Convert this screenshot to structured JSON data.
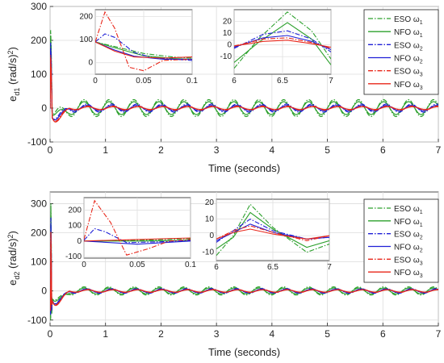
{
  "legend_labels": [
    "ESO ω1",
    "NFO ω1",
    "ESO ω2",
    "NFO ω2",
    "ESO ω3",
    "NFO ω3"
  ],
  "chart_data": [
    {
      "type": "line",
      "xlabel": "Time (seconds)",
      "ylabel": "e_d1 (rad/s^2)",
      "xlim": [
        0,
        7
      ],
      "ylim": [
        -100,
        300
      ],
      "xticks": [
        "0",
        "1",
        "2",
        "3",
        "4",
        "5",
        "6",
        "7"
      ],
      "yticks": [
        "-100",
        "0",
        "100",
        "200",
        "300"
      ],
      "grid": true,
      "legend": "top-right",
      "series": [
        {
          "name": "ESO ω1",
          "color": "#2ca02c",
          "dash": "6,2,1.5,2",
          "period": 0.45,
          "amp": 25,
          "phase": 0.05
        },
        {
          "name": "NFO ω1",
          "color": "#2ca02c",
          "dash": "",
          "period": 0.45,
          "amp": 19,
          "phase": 0.05
        },
        {
          "name": "ESO ω2",
          "color": "#1f1fd6",
          "dash": "6,2,1.5,2",
          "period": 0.45,
          "amp": 12,
          "phase": 0.1
        },
        {
          "name": "NFO ω2",
          "color": "#1f1fd6",
          "dash": "",
          "period": 0.45,
          "amp": 8,
          "phase": 0.1
        },
        {
          "name": "ESO ω3",
          "color": "#e8261a",
          "dash": "6,2,1.5,2",
          "period": 0.45,
          "amp": 6,
          "phase": 0.12
        },
        {
          "name": "NFO ω3",
          "color": "#e8261a",
          "dash": "",
          "period": 0.45,
          "amp": 4,
          "phase": 0.12
        }
      ],
      "insets": [
        {
          "xlim": [
            0,
            0.1
          ],
          "ylim": [
            -50,
            230
          ],
          "xticks": [
            "0",
            "0.05",
            "0.1"
          ],
          "yticks": [
            "0",
            "100",
            "200"
          ],
          "series": [
            {
              "name": "ESO ω1",
              "points": [
                [
                  0,
                  90
                ],
                [
                  0.02,
                  70
                ],
                [
                  0.05,
                  40
                ],
                [
                  0.08,
                  25
                ],
                [
                  0.1,
                  20
                ]
              ]
            },
            {
              "name": "NFO ω1",
              "points": [
                [
                  0,
                  90
                ],
                [
                  0.02,
                  65
                ],
                [
                  0.05,
                  30
                ],
                [
                  0.08,
                  18
                ],
                [
                  0.1,
                  15
                ]
              ]
            },
            {
              "name": "ESO ω2",
              "points": [
                [
                  0,
                  90
                ],
                [
                  0.01,
                  125
                ],
                [
                  0.02,
                  110
                ],
                [
                  0.04,
                  45
                ],
                [
                  0.06,
                  20
                ],
                [
                  0.1,
                  10
                ]
              ]
            },
            {
              "name": "NFO ω2",
              "points": [
                [
                  0,
                  90
                ],
                [
                  0.02,
                  55
                ],
                [
                  0.04,
                  28
                ],
                [
                  0.07,
                  15
                ],
                [
                  0.1,
                  15
                ]
              ]
            },
            {
              "name": "ESO ω3",
              "points": [
                [
                  0,
                  90
                ],
                [
                  0.01,
                  220
                ],
                [
                  0.02,
                  150
                ],
                [
                  0.035,
                  -20
                ],
                [
                  0.05,
                  -35
                ],
                [
                  0.07,
                  10
                ],
                [
                  0.1,
                  15
                ]
              ]
            },
            {
              "name": "NFO ω3",
              "points": [
                [
                  0,
                  90
                ],
                [
                  0.02,
                  50
                ],
                [
                  0.04,
                  25
                ],
                [
                  0.07,
                  20
                ],
                [
                  0.1,
                  25
                ]
              ]
            }
          ]
        },
        {
          "xlim": [
            6,
            7
          ],
          "ylim": [
            -25,
            30
          ],
          "xticks": [
            "6",
            "6.5",
            "7"
          ],
          "yticks": [
            "-10",
            "0",
            "10",
            "20"
          ],
          "series": [
            {
              "name": "ESO ω1",
              "points": [
                [
                  6,
                  -20
                ],
                [
                  6.25,
                  5
                ],
                [
                  6.55,
                  28
                ],
                [
                  6.8,
                  12
                ],
                [
                  7,
                  -12
                ]
              ]
            },
            {
              "name": "NFO ω1",
              "points": [
                [
                  6,
                  -15
                ],
                [
                  6.25,
                  2
                ],
                [
                  6.55,
                  19
                ],
                [
                  6.8,
                  5
                ],
                [
                  7,
                  -17
                ]
              ]
            },
            {
              "name": "ESO ω2",
              "points": [
                [
                  6,
                  -3
                ],
                [
                  6.3,
                  9
                ],
                [
                  6.55,
                  12
                ],
                [
                  6.8,
                  5
                ],
                [
                  7,
                  -6
                ]
              ]
            },
            {
              "name": "NFO ω2",
              "points": [
                [
                  6,
                  -2
                ],
                [
                  6.3,
                  6
                ],
                [
                  6.55,
                  8
                ],
                [
                  6.8,
                  3
                ],
                [
                  7,
                  -4
                ]
              ]
            },
            {
              "name": "ESO ω3",
              "points": [
                [
                  6,
                  -1
                ],
                [
                  6.3,
                  5
                ],
                [
                  6.55,
                  6
                ],
                [
                  6.8,
                  2
                ],
                [
                  7,
                  -3
                ]
              ]
            },
            {
              "name": "NFO ω3",
              "points": [
                [
                  6,
                  -1
                ],
                [
                  6.3,
                  3
                ],
                [
                  6.55,
                  4
                ],
                [
                  6.8,
                  1
                ],
                [
                  7,
                  -2
                ]
              ]
            }
          ]
        }
      ]
    },
    {
      "type": "line",
      "xlabel": "Time (seconds)",
      "ylabel": "e_d2 (rad/s^2)",
      "xlim": [
        0,
        7
      ],
      "ylim": [
        -120,
        340
      ],
      "xticks": [
        "0",
        "1",
        "2",
        "3",
        "4",
        "5",
        "6",
        "7"
      ],
      "yticks": [
        "-100",
        "0",
        "100",
        "200",
        "300"
      ],
      "grid": true,
      "legend": "top-right",
      "series": [
        {
          "name": "ESO ω1",
          "color": "#2ca02c",
          "dash": "6,2,1.5,2",
          "period": 0.45,
          "amp": 14,
          "phase": 0.05
        },
        {
          "name": "NFO ω1",
          "color": "#2ca02c",
          "dash": "",
          "period": 0.45,
          "amp": 10,
          "phase": 0.05
        },
        {
          "name": "ESO ω2",
          "color": "#1f1fd6",
          "dash": "6,2,1.5,2",
          "period": 0.45,
          "amp": 8,
          "phase": 0.1
        },
        {
          "name": "NFO ω2",
          "color": "#1f1fd6",
          "dash": "",
          "period": 0.45,
          "amp": 6,
          "phase": 0.1
        },
        {
          "name": "ESO ω3",
          "color": "#e8261a",
          "dash": "6,2,1.5,2",
          "period": 0.45,
          "amp": 5,
          "phase": 0.12
        },
        {
          "name": "NFO ω3",
          "color": "#e8261a",
          "dash": "",
          "period": 0.45,
          "amp": 4,
          "phase": 0.12
        }
      ],
      "insets": [
        {
          "xlim": [
            0,
            0.1
          ],
          "ylim": [
            -110,
            280
          ],
          "xticks": [
            "0",
            "0.05",
            "0.1"
          ],
          "yticks": [
            "-100",
            "0",
            "100",
            "200"
          ],
          "series": [
            {
              "name": "ESO ω1",
              "points": [
                [
                  0,
                  0
                ],
                [
                  0.05,
                  5
                ],
                [
                  0.1,
                  15
                ]
              ]
            },
            {
              "name": "NFO ω1",
              "points": [
                [
                  0,
                  0
                ],
                [
                  0.05,
                  0
                ],
                [
                  0.1,
                  5
                ]
              ]
            },
            {
              "name": "ESO ω2",
              "points": [
                [
                  0,
                  5
                ],
                [
                  0.01,
                  80
                ],
                [
                  0.02,
                  60
                ],
                [
                  0.04,
                  -10
                ],
                [
                  0.07,
                  -5
                ],
                [
                  0.1,
                  5
                ]
              ]
            },
            {
              "name": "NFO ω2",
              "points": [
                [
                  0,
                  0
                ],
                [
                  0.05,
                  -20
                ],
                [
                  0.1,
                  0
                ]
              ]
            },
            {
              "name": "ESO ω3",
              "points": [
                [
                  0,
                  10
                ],
                [
                  0.01,
                  260
                ],
                [
                  0.025,
                  120
                ],
                [
                  0.04,
                  -90
                ],
                [
                  0.06,
                  -50
                ],
                [
                  0.08,
                  0
                ],
                [
                  0.1,
                  10
                ]
              ]
            },
            {
              "name": "NFO ω3",
              "points": [
                [
                  0,
                  0
                ],
                [
                  0.05,
                  10
                ],
                [
                  0.1,
                  20
                ]
              ]
            }
          ]
        },
        {
          "xlim": [
            6,
            7
          ],
          "ylim": [
            -15,
            22
          ],
          "xticks": [
            "6",
            "6.5",
            "7"
          ],
          "yticks": [
            "-10",
            "0",
            "10",
            "20"
          ],
          "series": [
            {
              "name": "ESO ω1",
              "points": [
                [
                  6,
                  -12
                ],
                [
                  6.15,
                  0
                ],
                [
                  6.3,
                  19
                ],
                [
                  6.5,
                  5
                ],
                [
                  6.8,
                  -10
                ],
                [
                  7,
                  -5
                ]
              ]
            },
            {
              "name": "NFO ω1",
              "points": [
                [
                  6,
                  -8
                ],
                [
                  6.15,
                  -1
                ],
                [
                  6.3,
                  14
                ],
                [
                  6.5,
                  4
                ],
                [
                  6.8,
                  -7
                ],
                [
                  7,
                  -3
                ]
              ]
            },
            {
              "name": "ESO ω2",
              "points": [
                [
                  6,
                  -4
                ],
                [
                  6.15,
                  3
                ],
                [
                  6.3,
                  10
                ],
                [
                  6.5,
                  3
                ],
                [
                  6.8,
                  -2
                ],
                [
                  7,
                  -1
                ]
              ]
            },
            {
              "name": "NFO ω2",
              "points": [
                [
                  6,
                  -3
                ],
                [
                  6.15,
                  2
                ],
                [
                  6.3,
                  7
                ],
                [
                  6.5,
                  2
                ],
                [
                  6.8,
                  -2
                ],
                [
                  7,
                  -1
                ]
              ]
            },
            {
              "name": "ESO ω3",
              "points": [
                [
                  6,
                  -2
                ],
                [
                  6.15,
                  3
                ],
                [
                  6.3,
                  6
                ],
                [
                  6.5,
                  2
                ],
                [
                  6.8,
                  -3
                ],
                [
                  7,
                  0
                ]
              ]
            },
            {
              "name": "NFO ω3",
              "points": [
                [
                  6,
                  -2
                ],
                [
                  6.15,
                  2
                ],
                [
                  6.3,
                  4
                ],
                [
                  6.5,
                  1
                ],
                [
                  6.8,
                  -2
                ],
                [
                  7,
                  0
                ]
              ]
            }
          ]
        }
      ]
    }
  ]
}
